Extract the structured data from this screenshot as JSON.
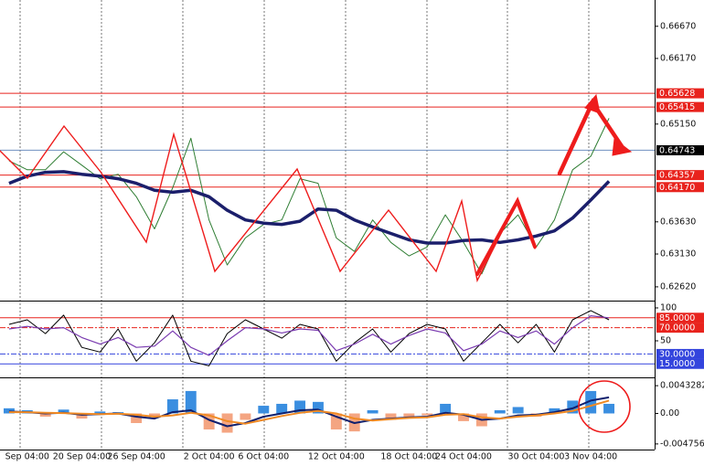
{
  "chart_data": [
    {
      "type": "line",
      "ylim": [
        0.6242,
        0.6705
      ],
      "yticks": [
        {
          "value": 0.6667,
          "label": "0.66670"
        },
        {
          "value": 0.6617,
          "label": "0.66170"
        },
        {
          "value": 0.6515,
          "label": "0.65150"
        },
        {
          "value": 0.6363,
          "label": "0.63630"
        },
        {
          "value": 0.6313,
          "label": "0.63130"
        },
        {
          "value": 0.6262,
          "label": "0.62620"
        }
      ],
      "levels": [
        {
          "value": 0.65628,
          "color": "#e8231d",
          "box": "#e8231d"
        },
        {
          "value": 0.65415,
          "color": "#e8231d",
          "box": "#e8231d"
        },
        {
          "value": 0.64743,
          "color": "#6f8fc0",
          "box": "#000000"
        },
        {
          "value": 0.64357,
          "color": "#e8231d",
          "box": "#e8231d"
        },
        {
          "value": {
            "value": 0.6417,
            "label": "0.64170"
          },
          "color": "#e8231d",
          "box": "#e8231d"
        }
      ],
      "series": [
        {
          "color": "#2e7d32",
          "width": 1,
          "values": [
            0.6458,
            0.6444,
            0.6444,
            0.6472,
            0.6451,
            0.643,
            0.6437,
            0.6402,
            0.6352,
            0.6416,
            0.6493,
            0.6366,
            0.6296,
            0.6338,
            0.6359,
            0.6366,
            0.643,
            0.6423,
            0.6338,
            0.6317,
            0.6366,
            0.6331,
            0.631,
            0.6324,
            0.6374,
            0.6331,
            0.6282,
            0.6345,
            0.6374,
            0.6324,
            0.6366,
            0.6444,
            0.6465,
            0.6524
          ]
        },
        {
          "color": "#1b1f6b",
          "width": 3.5,
          "values": [
            0.6423,
            0.6434,
            0.644,
            0.6441,
            0.6437,
            0.6434,
            0.643,
            0.6423,
            0.6412,
            0.6409,
            0.6412,
            0.6402,
            0.6381,
            0.6366,
            0.6361,
            0.6359,
            0.6364,
            0.6383,
            0.6381,
            0.6366,
            0.6355,
            0.6345,
            0.6335,
            0.633,
            0.633,
            0.6334,
            0.6335,
            0.6331,
            0.6335,
            0.6341,
            0.6349,
            0.6369,
            0.6397,
            0.6426
          ]
        }
      ]
    },
    {
      "type": "line",
      "ylim": [
        -5.5,
        108.3
      ],
      "yticks": [
        100,
        50
      ],
      "levels": [
        {
          "value": {
            "value": 85,
            "label": "85.0000"
          },
          "color": "#e8231d",
          "box": "#e8231d"
        },
        {
          "value": {
            "value": 70,
            "label": "70.0000"
          },
          "color": "#e8231d",
          "box": "#e8231d",
          "dash": "6 2 2 2"
        },
        {
          "value": {
            "value": 30,
            "label": "30.0000"
          },
          "color": "#3344dd",
          "box": "#3344dd",
          "dash": "6 2 2 2"
        },
        {
          "value": {
            "value": 15,
            "label": "15.0000"
          },
          "color": "#3344dd",
          "box": "#3344dd"
        }
      ],
      "series": [
        {
          "color": "#000000",
          "width": 1,
          "values": [
            75,
            82,
            61,
            89,
            40,
            33,
            68,
            19,
            47,
            89,
            19,
            12,
            61,
            82,
            68,
            54,
            75,
            68,
            19,
            47,
            68,
            33,
            61,
            75,
            68,
            19,
            47,
            75,
            47,
            75,
            33,
            82,
            96,
            82
          ]
        },
        {
          "color": "#7a3bb0",
          "width": 1.2,
          "values": [
            68,
            72,
            68,
            70,
            55,
            45,
            55,
            40,
            42,
            65,
            40,
            28,
            50,
            70,
            68,
            62,
            68,
            66,
            35,
            45,
            60,
            45,
            58,
            68,
            62,
            35,
            45,
            65,
            55,
            65,
            45,
            70,
            88,
            85
          ]
        }
      ]
    },
    {
      "type": "bar",
      "ylim": [
        -0.00563,
        0.00534
      ],
      "yticks": [
        0.0043282,
        {
          "value": 0,
          "label": "0.00"
        },
        -0.004756
      ],
      "categories": [
        null,
        "Sep 04:00",
        null,
        null,
        "20 Sep 04:00",
        null,
        null,
        "26 Sep 04:00",
        null,
        null,
        null,
        "2 Oct 04:00",
        null,
        null,
        "6 Oct 04:00",
        null,
        null,
        null,
        "12 Oct 04:00",
        null,
        null,
        null,
        "18 Oct 04:00",
        null,
        null,
        "24 Oct 04:00",
        null,
        null,
        null,
        "30 Oct 04:00",
        null,
        null,
        "3 Nov 04:00",
        null
      ],
      "series": [
        {
          "type": "bar",
          "up_color": "#3a8ee0",
          "down_color": "#f4a582",
          "values": [
            0.0008,
            0.0005,
            -0.0005,
            0.0006,
            -0.0008,
            0.0003,
            0.0002,
            -0.0015,
            -0.0005,
            0.0022,
            0.0035,
            -0.0025,
            -0.003,
            -0.001,
            0.0012,
            0.0015,
            0.002,
            0.0018,
            -0.0025,
            -0.0028,
            0.0005,
            -0.001,
            -0.0005,
            -0.0003,
            0.0015,
            -0.0012,
            -0.002,
            0.0005,
            0.001,
            -0.0005,
            0.0008,
            0.002,
            0.0035,
            0.0015
          ]
        },
        {
          "type": "line",
          "color": "#10206e",
          "width": 2,
          "values": [
            0.0003,
            0.0002,
            0,
            0.0001,
            -0.0002,
            -0.0001,
            0,
            -0.0005,
            -0.0008,
            0.0002,
            0.0005,
            -0.001,
            -0.002,
            -0.0015,
            -0.0005,
            0,
            0.0005,
            0.0006,
            -0.0005,
            -0.0015,
            -0.001,
            -0.0008,
            -0.0006,
            -0.0005,
            0.0001,
            -0.0002,
            -0.001,
            -0.0008,
            -0.0003,
            -0.0002,
            0.0002,
            0.0008,
            0.002,
            0.0025
          ]
        },
        {
          "type": "line",
          "color": "#f08a24",
          "width": 2,
          "values": [
            0.0002,
            0.0002,
            0.0001,
            5e-05,
            -5e-05,
            -0.0001,
            -5e-05,
            -0.0002,
            -0.0005,
            -0.0003,
            0.0001,
            -0.0003,
            -0.0012,
            -0.0016,
            -0.001,
            -0.0004,
            0.0001,
            0.0004,
            0,
            -0.0008,
            -0.0011,
            -0.0009,
            -0.0007,
            -0.0006,
            -0.0002,
            -0.0001,
            -0.0006,
            -0.0008,
            -0.0005,
            -0.0003,
            0,
            0.0004,
            0.0012,
            0.002
          ]
        }
      ]
    }
  ]
}
